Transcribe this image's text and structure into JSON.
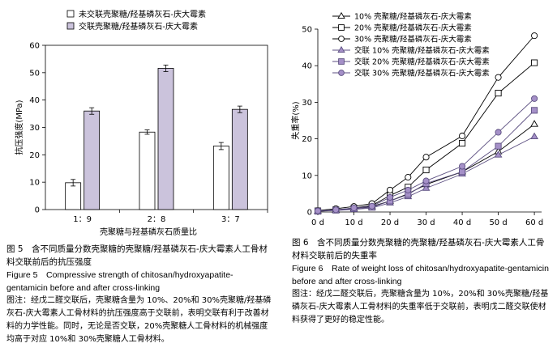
{
  "chart_data": [
    {
      "type": "bar",
      "categories": [
        "1：9",
        "2：8",
        "3：7"
      ],
      "ylabel": "抗压强度(MPa)",
      "xlabel": "壳聚糖与羟基磷灰石质量比",
      "ylim": [
        0,
        60
      ],
      "yticks": [
        "0",
        "10",
        "20",
        "30",
        "40",
        "50",
        "60"
      ],
      "legend_position": "top-left",
      "series": [
        {
          "name": "未交联壳聚糖/羟基磷灰石-庆大霉素",
          "color": "#ffffff",
          "values": [
            9.8,
            28.3,
            23.2
          ],
          "errors": [
            1.2,
            0.8,
            1.3
          ]
        },
        {
          "name": "交联壳聚糖/羟基磷灰石-庆大霉素",
          "color": "#cbc3dc",
          "values": [
            36.0,
            51.6,
            36.6
          ],
          "errors": [
            1.2,
            1.2,
            1.2
          ]
        }
      ]
    },
    {
      "type": "line",
      "ylabel": "失重率(%)",
      "x": [
        0,
        5,
        10,
        15,
        20,
        25,
        30,
        40,
        50,
        60
      ],
      "xticks": [
        "0 d",
        "10 d",
        "20 d",
        "30 d",
        "40 d",
        "50 d",
        "60 d"
      ],
      "xtick_values": [
        0,
        10,
        20,
        30,
        40,
        50,
        60
      ],
      "ylim": [
        0,
        50
      ],
      "yticks": [
        "0",
        "10",
        "20",
        "30",
        "40",
        "50"
      ],
      "legend_position": "top-left",
      "series": [
        {
          "name": "10% 壳聚糖/羟基磷灰石-庆大霉素",
          "marker": "triangle",
          "stroke": "#000000",
          "fill": "#ffffff",
          "values": [
            0.2,
            0.5,
            0.9,
            1.5,
            3.0,
            5.0,
            7.5,
            11.0,
            16.5,
            24.0
          ]
        },
        {
          "name": "20% 壳聚糖/羟基磷灰石-庆大霉素",
          "marker": "square",
          "stroke": "#000000",
          "fill": "#ffffff",
          "values": [
            0.3,
            0.6,
            1.1,
            1.8,
            4.5,
            6.8,
            11.5,
            18.8,
            32.5,
            40.8
          ]
        },
        {
          "name": "30% 壳聚糖/羟基磷灰石-庆大霉素",
          "marker": "circle",
          "stroke": "#000000",
          "fill": "#ffffff",
          "values": [
            0.4,
            0.9,
            1.5,
            2.3,
            6.0,
            9.5,
            15.0,
            20.8,
            36.8,
            48.2
          ]
        },
        {
          "name": "交联 10% 壳聚糖/羟基磷灰石-庆大霉素",
          "marker": "triangle",
          "stroke": "#5b4e80",
          "fill": "#a590c8",
          "values": [
            0.2,
            0.4,
            0.7,
            1.1,
            2.5,
            4.2,
            6.5,
            10.4,
            15.6,
            20.6
          ]
        },
        {
          "name": "交联 20% 壳聚糖/羟基磷灰石-庆大霉素",
          "marker": "square",
          "stroke": "#5b4e80",
          "fill": "#a590c8",
          "values": [
            0.2,
            0.5,
            0.9,
            1.3,
            3.0,
            4.8,
            7.8,
            11.0,
            18.0,
            27.8
          ]
        },
        {
          "name": "交联 30% 壳聚糖/羟基磷灰石-庆大霉素",
          "marker": "circle",
          "stroke": "#5b4e80",
          "fill": "#a590c8",
          "values": [
            0.3,
            0.6,
            1.1,
            1.6,
            4.0,
            6.0,
            8.5,
            12.5,
            21.8,
            31.0
          ]
        }
      ]
    }
  ],
  "captions": {
    "fig5_cn": "图 5　含不同质量分数壳聚糖的壳聚糖/羟基磷灰石-庆大霉素人工骨材料交联前后的抗压强度",
    "fig5_en": "Figure 5　Compressive strength of chitosan/hydroxyapatite-gentamicin before and after cross-linking",
    "fig5_note": "图注：经戊二醛交联后，壳聚糖含量为 10%、20%和 30%壳聚糖/羟基磷灰石-庆大霉素人工骨材料的抗压强度高于交联前，表明交联有利于改善材料的力学性能。同时，无论是否交联，20%壳聚糖人工骨材料的机械强度均高于对应 10%和 30%壳聚糖人工骨材料。",
    "fig6_cn": "图 6　含不同质量分数壳聚糖的壳聚糖/羟基磷灰石-庆大霉素人工骨材料交联前后的失重率",
    "fig6_en": "Figure 6　Rate of weight loss of chitosan/hydroxyapatite-gentamicin before and after cross-linking",
    "fig6_note": "图注：经戊二醛交联后，壳聚糖含量为 10%，20%和 30%壳聚糖/羟基磷灰石-庆大霉素人工骨材料的失重率低于交联前，表明戊二醛交联使材料获得了更好的稳定性能。"
  }
}
